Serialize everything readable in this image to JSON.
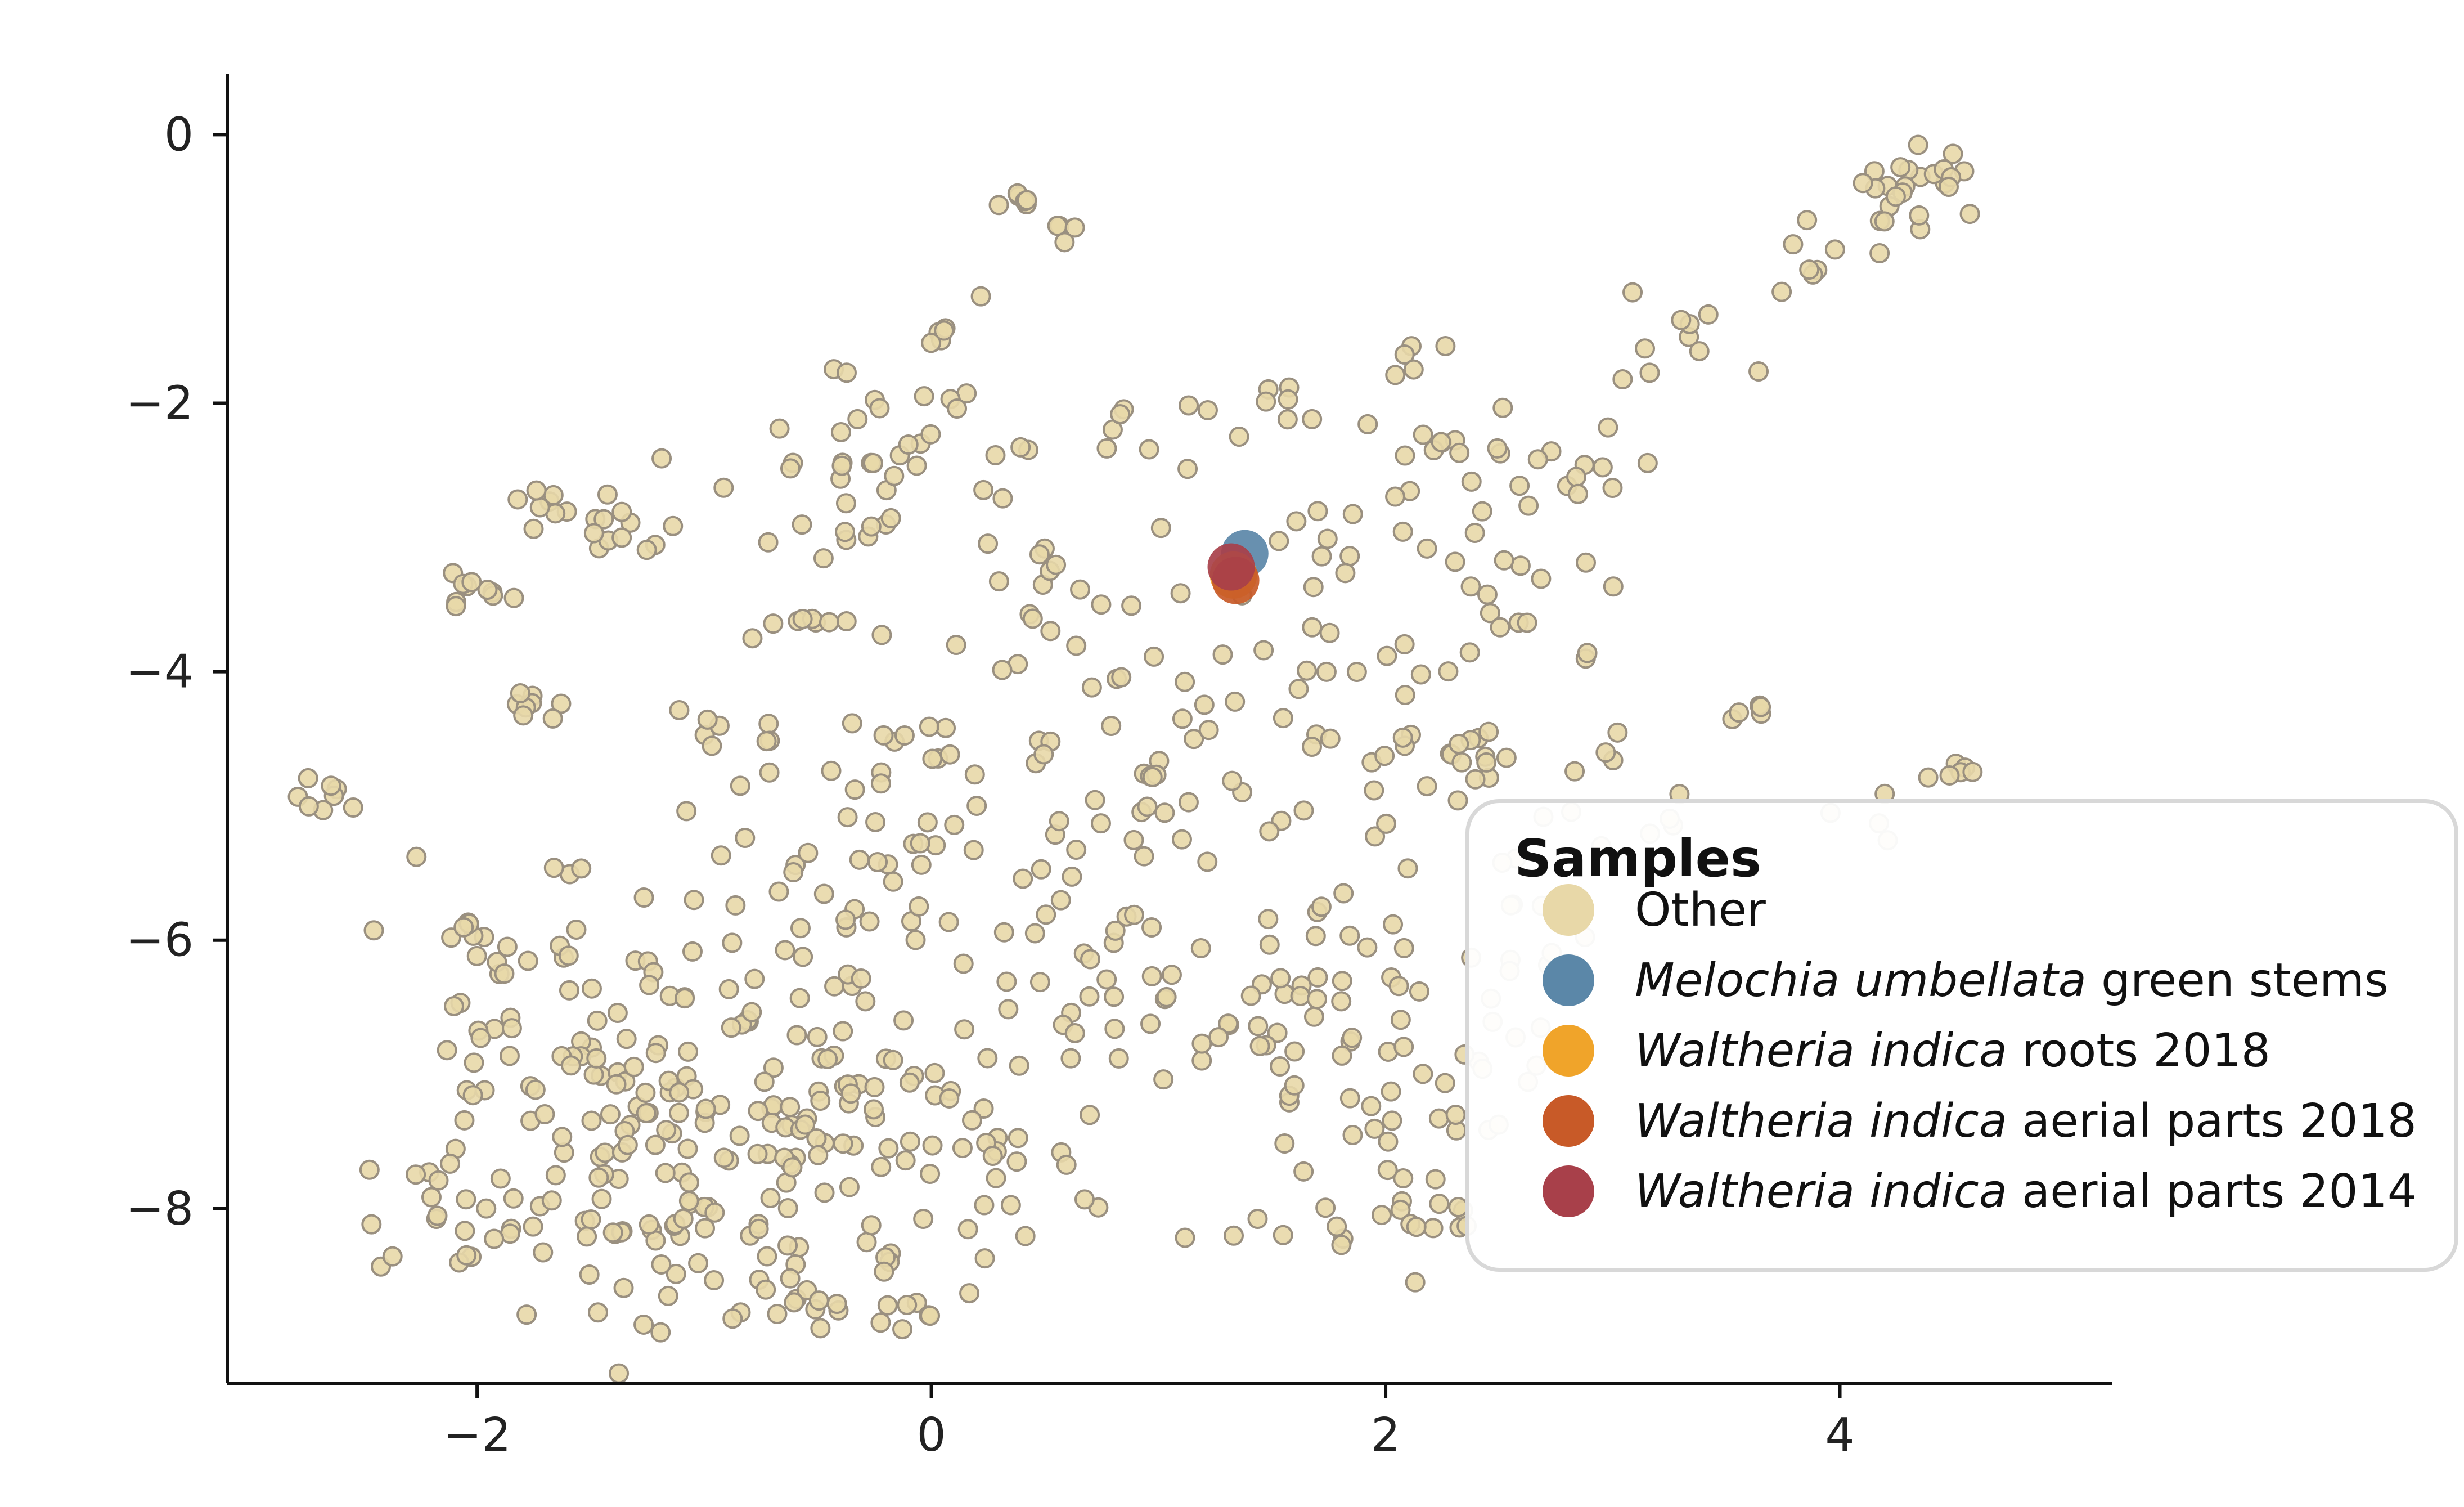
{
  "chart_data": {
    "type": "scatter",
    "xlim": [
      -3.1,
      5.2
    ],
    "ylim": [
      -9.3,
      0.45
    ],
    "x_ticks": [
      "−2",
      "0",
      "2",
      "4"
    ],
    "x_tick_values": [
      -2,
      0,
      2,
      4
    ],
    "y_ticks": [
      "0",
      "−2",
      "−4",
      "−6",
      "−8"
    ],
    "y_tick_values": [
      0,
      -2,
      -4,
      -6,
      -8
    ],
    "grid": false,
    "legend": {
      "title": "Samples",
      "placement": "right",
      "items": [
        {
          "italic": "",
          "rest": "Other",
          "color": "#e8d8a8"
        },
        {
          "italic": "Melochia umbellata",
          "rest": " green stems",
          "color": "#5b87a8"
        },
        {
          "italic": "Waltheria indica",
          "rest": " roots 2018",
          "color": "#f0a42a"
        },
        {
          "italic": "Waltheria indica",
          "rest": " aerial parts 2018",
          "color": "#c85a28"
        },
        {
          "italic": "Waltheria indica",
          "rest": " aerial parts 2014",
          "color": "#a8404a"
        }
      ]
    },
    "series": [
      {
        "name": "Melochia umbellata green stems",
        "color": "#5b87a8",
        "points": [
          [
            1.38,
            -3.12
          ]
        ]
      },
      {
        "name": "Waltheria indica roots 2018",
        "color": "#f0a42a",
        "points": [
          [
            1.33,
            -3.28
          ]
        ]
      },
      {
        "name": "Waltheria indica aerial parts 2018",
        "color": "#c85a28",
        "points": [
          [
            1.34,
            -3.32
          ]
        ]
      },
      {
        "name": "Waltheria indica aerial parts 2014",
        "color": "#a8404a",
        "points": [
          [
            1.32,
            -3.22
          ]
        ]
      }
    ],
    "other_clusters": [
      [
        0.4,
        -0.5,
        0.05,
        6
      ],
      [
        0.65,
        -0.7,
        0.08,
        4
      ],
      [
        0.2,
        -1.2,
        0.02,
        1
      ],
      [
        0.0,
        -1.5,
        0.05,
        5
      ],
      [
        4.4,
        -0.35,
        0.15,
        22
      ],
      [
        4.0,
        -0.8,
        0.12,
        6
      ],
      [
        3.9,
        -1.1,
        0.1,
        4
      ],
      [
        3.5,
        -1.4,
        0.2,
        6
      ],
      [
        3.0,
        -1.65,
        0.2,
        4
      ],
      [
        -1.75,
        -2.8,
        0.1,
        8
      ],
      [
        -1.35,
        -2.95,
        0.12,
        12
      ],
      [
        -2.05,
        -3.4,
        0.1,
        10
      ],
      [
        -1.75,
        -4.3,
        0.08,
        8
      ],
      [
        -2.65,
        -4.95,
        0.08,
        8
      ],
      [
        -2.3,
        -5.4,
        0.03,
        1
      ],
      [
        -2.0,
        -5.9,
        0.06,
        5
      ],
      [
        -1.6,
        -5.5,
        0.04,
        3
      ],
      [
        -0.6,
        -3.6,
        0.12,
        8
      ],
      [
        -0.5,
        -2.7,
        0.3,
        14
      ],
      [
        -0.3,
        -2.1,
        0.35,
        16
      ],
      [
        0.3,
        -2.6,
        0.4,
        12
      ],
      [
        0.5,
        -3.4,
        0.35,
        16
      ],
      [
        0.55,
        -4.1,
        0.35,
        10
      ],
      [
        1.0,
        -4.6,
        0.35,
        12
      ],
      [
        1.0,
        -5.0,
        0.3,
        16
      ],
      [
        0.8,
        -2.2,
        0.2,
        10
      ],
      [
        1.6,
        -2.0,
        0.15,
        6
      ],
      [
        2.1,
        -1.7,
        0.08,
        5
      ],
      [
        2.5,
        -2.2,
        0.2,
        10
      ],
      [
        2.3,
        -2.7,
        0.3,
        12
      ],
      [
        2.8,
        -2.6,
        0.2,
        10
      ],
      [
        2.6,
        -3.3,
        0.3,
        10
      ],
      [
        2.4,
        -3.9,
        0.3,
        10
      ],
      [
        1.8,
        -3.4,
        0.3,
        10
      ],
      [
        1.6,
        -4.0,
        0.3,
        10
      ],
      [
        1.9,
        -4.7,
        0.3,
        12
      ],
      [
        2.4,
        -4.8,
        0.2,
        10
      ],
      [
        3.6,
        -4.3,
        0.05,
        5
      ],
      [
        4.5,
        -4.75,
        0.07,
        6
      ],
      [
        2.9,
        -4.6,
        0.15,
        3
      ],
      [
        -0.9,
        -4.4,
        0.15,
        6
      ],
      [
        -0.2,
        -4.5,
        0.25,
        10
      ],
      [
        0.0,
        -5.2,
        0.5,
        18
      ],
      [
        -0.6,
        -5.7,
        0.5,
        20
      ],
      [
        0.3,
        -6.0,
        0.45,
        20
      ],
      [
        1.1,
        -6.3,
        0.4,
        16
      ],
      [
        0.7,
        -6.7,
        0.35,
        14
      ],
      [
        -1.6,
        -6.2,
        0.3,
        22
      ],
      [
        -1.1,
        -6.6,
        0.4,
        28
      ],
      [
        -0.5,
        -6.9,
        0.45,
        34
      ],
      [
        -1.8,
        -7.2,
        0.35,
        22
      ],
      [
        -1.3,
        -7.5,
        0.45,
        34
      ],
      [
        -0.5,
        -7.6,
        0.45,
        32
      ],
      [
        0.1,
        -7.3,
        0.35,
        14
      ],
      [
        -2.0,
        -8.0,
        0.3,
        22
      ],
      [
        -1.3,
        -8.2,
        0.4,
        30
      ],
      [
        -0.6,
        -8.4,
        0.35,
        30
      ],
      [
        -0.2,
        -8.55,
        0.2,
        12
      ],
      [
        0.3,
        -7.9,
        0.3,
        8
      ],
      [
        1.5,
        -6.6,
        0.3,
        18
      ],
      [
        2.0,
        -6.3,
        0.35,
        18
      ],
      [
        1.7,
        -7.2,
        0.35,
        14
      ],
      [
        2.1,
        -7.6,
        0.3,
        14
      ],
      [
        1.7,
        -8.2,
        0.3,
        10
      ],
      [
        2.3,
        -5.8,
        0.3,
        10
      ],
      [
        2.4,
        -6.9,
        0.2,
        10
      ],
      [
        2.2,
        -8.1,
        0.15,
        6
      ],
      [
        2.6,
        -5.0,
        0.3,
        6
      ],
      [
        3.2,
        -5.1,
        0.2,
        4
      ],
      [
        4.1,
        -5.1,
        0.2,
        4
      ]
    ]
  }
}
